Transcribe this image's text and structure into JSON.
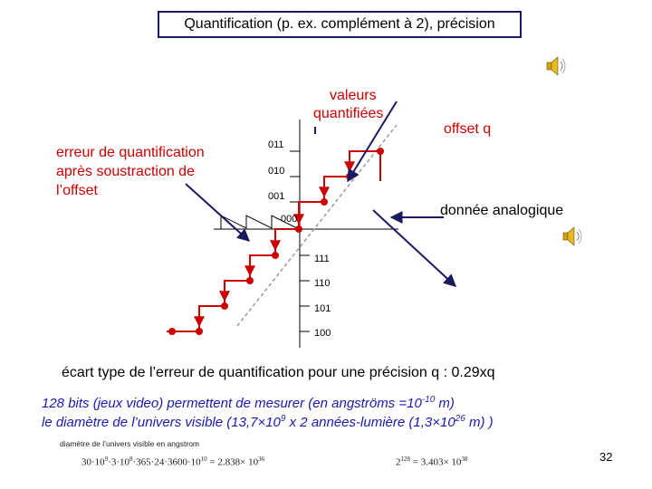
{
  "title": "Quantification (p. ex. complément à 2), précision",
  "labels": {
    "valeurs_line1": "valeurs",
    "valeurs_line2": "quantifiées",
    "offset": "offset q",
    "erreur_line1": "erreur de quantification",
    "erreur_line2": "après soustraction de",
    "erreur_line3": "l’offset",
    "donnee": "donnée analogique"
  },
  "codes": {
    "c011": "011",
    "c010": "010",
    "c001": "001",
    "c000": "000",
    "c111": "111",
    "c110": "110",
    "c101": "101",
    "c100": "100"
  },
  "ecart": "écart type de l’erreur de quantification pour une précision q : 0.29xq",
  "bits": {
    "line1_a": "128 bits (jeux video) permettent de mesurer (en angströms =10",
    "line1_exp": "-10",
    "line1_b": " m)",
    "line2_a": "le diamètre de l’univers visible (",
    "line2_b": "13,7×10",
    "line2_exp1": "9",
    "line2_c": " x 2 années-lumière (1,3×10",
    "line2_exp2": "26",
    "line2_d": " m) )"
  },
  "diameter_caption": "diamètre de l’univers visible en angstrom",
  "formula1": {
    "a": "30·10",
    "e1": "9",
    "b": "·3·10",
    "e2": "8",
    "c": "·365·24·3600·10",
    "e3": "10",
    "d": " = 2.838× 10",
    "e4": "36"
  },
  "formula2": {
    "a": "2",
    "e1": "128",
    "b": " = 3.403× 10",
    "e2": "38"
  },
  "page_number": "32",
  "icons": [
    "speaker-icon",
    "speaker-icon"
  ],
  "colors": {
    "red": "#cc0000",
    "blue": "#1a1ab0",
    "navy": "#1a1a60"
  }
}
